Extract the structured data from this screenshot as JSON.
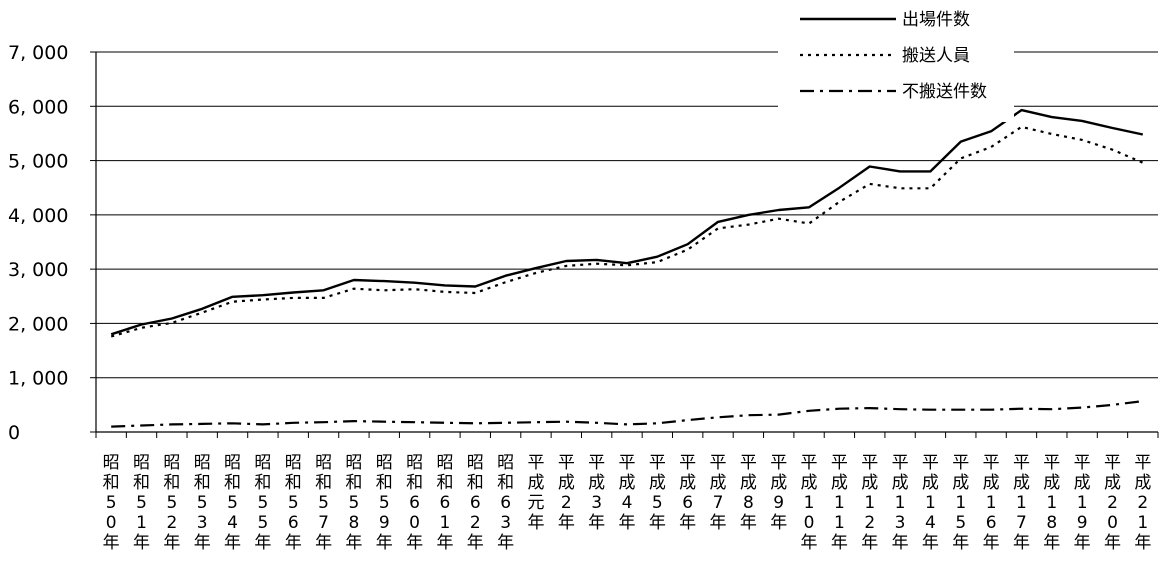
{
  "chart_data": {
    "type": "line",
    "title": "",
    "xlabel": "",
    "ylabel": "",
    "ylim": [
      0,
      7000
    ],
    "yticks": [
      "0",
      "1, 000",
      "2, 000",
      "3, 000",
      "4, 000",
      "5, 000",
      "6, 000",
      "7, 000"
    ],
    "grid": "horizontal",
    "legend_position": "top-right",
    "categories": [
      "昭和50年",
      "昭和51年",
      "昭和52年",
      "昭和53年",
      "昭和54年",
      "昭和55年",
      "昭和56年",
      "昭和57年",
      "昭和58年",
      "昭和59年",
      "昭和60年",
      "昭和61年",
      "昭和62年",
      "昭和63年",
      "平成元年",
      "平成2年",
      "平成3年",
      "平成4年",
      "平成5年",
      "平成6年",
      "平成7年",
      "平成8年",
      "平成9年",
      "平成10年",
      "平成11年",
      "平成12年",
      "平成13年",
      "平成14年",
      "平成15年",
      "平成16年",
      "平成17年",
      "平成18年",
      "平成19年",
      "平成20年",
      "平成21年"
    ],
    "series": [
      {
        "name": "出場件数",
        "style": "solid",
        "values": [
          1800,
          1980,
          2090,
          2270,
          2490,
          2520,
          2570,
          2610,
          2800,
          2780,
          2750,
          2700,
          2680,
          2880,
          3020,
          3150,
          3170,
          3110,
          3230,
          3460,
          3870,
          4000,
          4090,
          4140,
          4500,
          4890,
          4800,
          4800,
          5350,
          5540,
          5930,
          5800,
          5730,
          5600,
          5480
        ]
      },
      {
        "name": "搬送人員",
        "style": "dotted",
        "values": [
          1760,
          1920,
          2010,
          2200,
          2400,
          2440,
          2470,
          2470,
          2640,
          2610,
          2630,
          2580,
          2560,
          2760,
          2930,
          3060,
          3100,
          3070,
          3130,
          3360,
          3750,
          3820,
          3930,
          3840,
          4240,
          4570,
          4490,
          4490,
          5040,
          5250,
          5620,
          5490,
          5380,
          5200,
          4960
        ]
      },
      {
        "name": "不搬送件数",
        "style": "dashdot",
        "values": [
          100,
          120,
          140,
          150,
          160,
          140,
          170,
          180,
          200,
          190,
          180,
          170,
          160,
          170,
          180,
          190,
          170,
          140,
          160,
          220,
          270,
          310,
          320,
          390,
          430,
          440,
          420,
          410,
          410,
          410,
          430,
          420,
          450,
          500,
          570
        ]
      }
    ]
  }
}
